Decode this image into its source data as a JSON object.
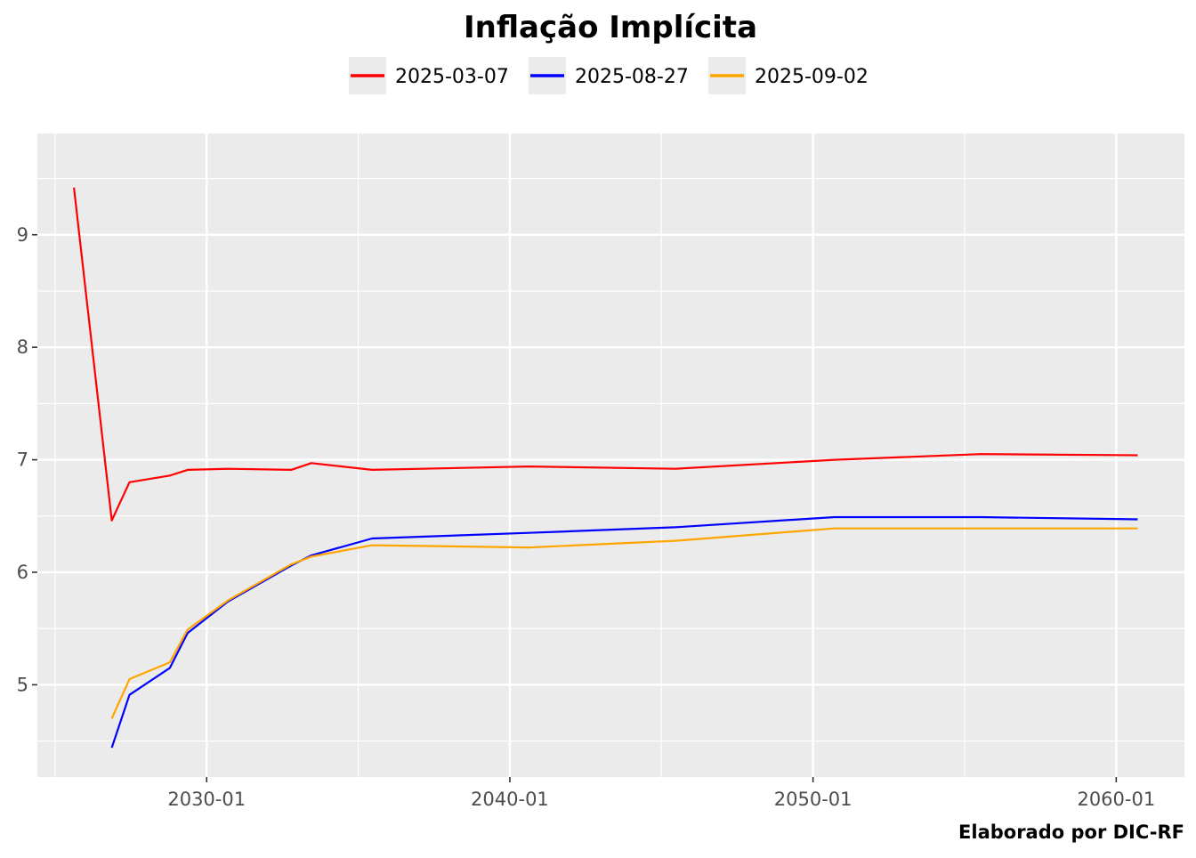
{
  "chart_data": {
    "type": "line",
    "title": "Inflação Implícita",
    "caption": "Elaborado por DIC-RF",
    "xlabel": "",
    "ylabel": "",
    "x_ticks": [
      "2030-01",
      "2040-01",
      "2050-01",
      "2060-01"
    ],
    "y_ticks": [
      5,
      6,
      7,
      8,
      9
    ],
    "xlim": [
      "2024-06-01",
      "2062-04-01"
    ],
    "ylim": [
      4.18,
      9.9
    ],
    "grid": true,
    "legend_position": "top",
    "series": [
      {
        "name": "2025-03-07",
        "color": "#FF0000",
        "points": [
          {
            "x": "2025-08-15",
            "y": 9.42
          },
          {
            "x": "2026-11-15",
            "y": 6.46
          },
          {
            "x": "2027-06-15",
            "y": 6.8
          },
          {
            "x": "2028-10-15",
            "y": 6.86
          },
          {
            "x": "2029-05-15",
            "y": 6.91
          },
          {
            "x": "2030-09-15",
            "y": 6.92
          },
          {
            "x": "2032-10-15",
            "y": 6.91
          },
          {
            "x": "2033-06-15",
            "y": 6.97
          },
          {
            "x": "2035-06-15",
            "y": 6.91
          },
          {
            "x": "2040-08-15",
            "y": 6.94
          },
          {
            "x": "2045-06-15",
            "y": 6.92
          },
          {
            "x": "2050-09-15",
            "y": 7.0
          },
          {
            "x": "2055-07-15",
            "y": 7.05
          },
          {
            "x": "2060-09-15",
            "y": 7.04
          }
        ]
      },
      {
        "name": "2025-08-27",
        "color": "#0000FF",
        "points": [
          {
            "x": "2026-11-15",
            "y": 4.44
          },
          {
            "x": "2027-06-15",
            "y": 4.91
          },
          {
            "x": "2028-10-15",
            "y": 5.15
          },
          {
            "x": "2029-05-15",
            "y": 5.46
          },
          {
            "x": "2030-09-15",
            "y": 5.74
          },
          {
            "x": "2032-10-15",
            "y": 6.06
          },
          {
            "x": "2033-06-15",
            "y": 6.15
          },
          {
            "x": "2035-06-15",
            "y": 6.3
          },
          {
            "x": "2040-08-15",
            "y": 6.35
          },
          {
            "x": "2045-06-15",
            "y": 6.4
          },
          {
            "x": "2050-09-15",
            "y": 6.49
          },
          {
            "x": "2055-07-15",
            "y": 6.49
          },
          {
            "x": "2060-09-15",
            "y": 6.47
          }
        ]
      },
      {
        "name": "2025-09-02",
        "color": "#FFA500",
        "points": [
          {
            "x": "2026-11-15",
            "y": 4.7
          },
          {
            "x": "2027-06-15",
            "y": 5.05
          },
          {
            "x": "2028-10-15",
            "y": 5.2
          },
          {
            "x": "2029-05-15",
            "y": 5.49
          },
          {
            "x": "2030-09-15",
            "y": 5.75
          },
          {
            "x": "2032-10-15",
            "y": 6.07
          },
          {
            "x": "2033-06-15",
            "y": 6.14
          },
          {
            "x": "2035-06-15",
            "y": 6.24
          },
          {
            "x": "2040-08-15",
            "y": 6.22
          },
          {
            "x": "2045-06-15",
            "y": 6.28
          },
          {
            "x": "2050-09-15",
            "y": 6.39
          },
          {
            "x": "2055-07-15",
            "y": 6.39
          },
          {
            "x": "2060-09-15",
            "y": 6.39
          }
        ]
      }
    ]
  }
}
